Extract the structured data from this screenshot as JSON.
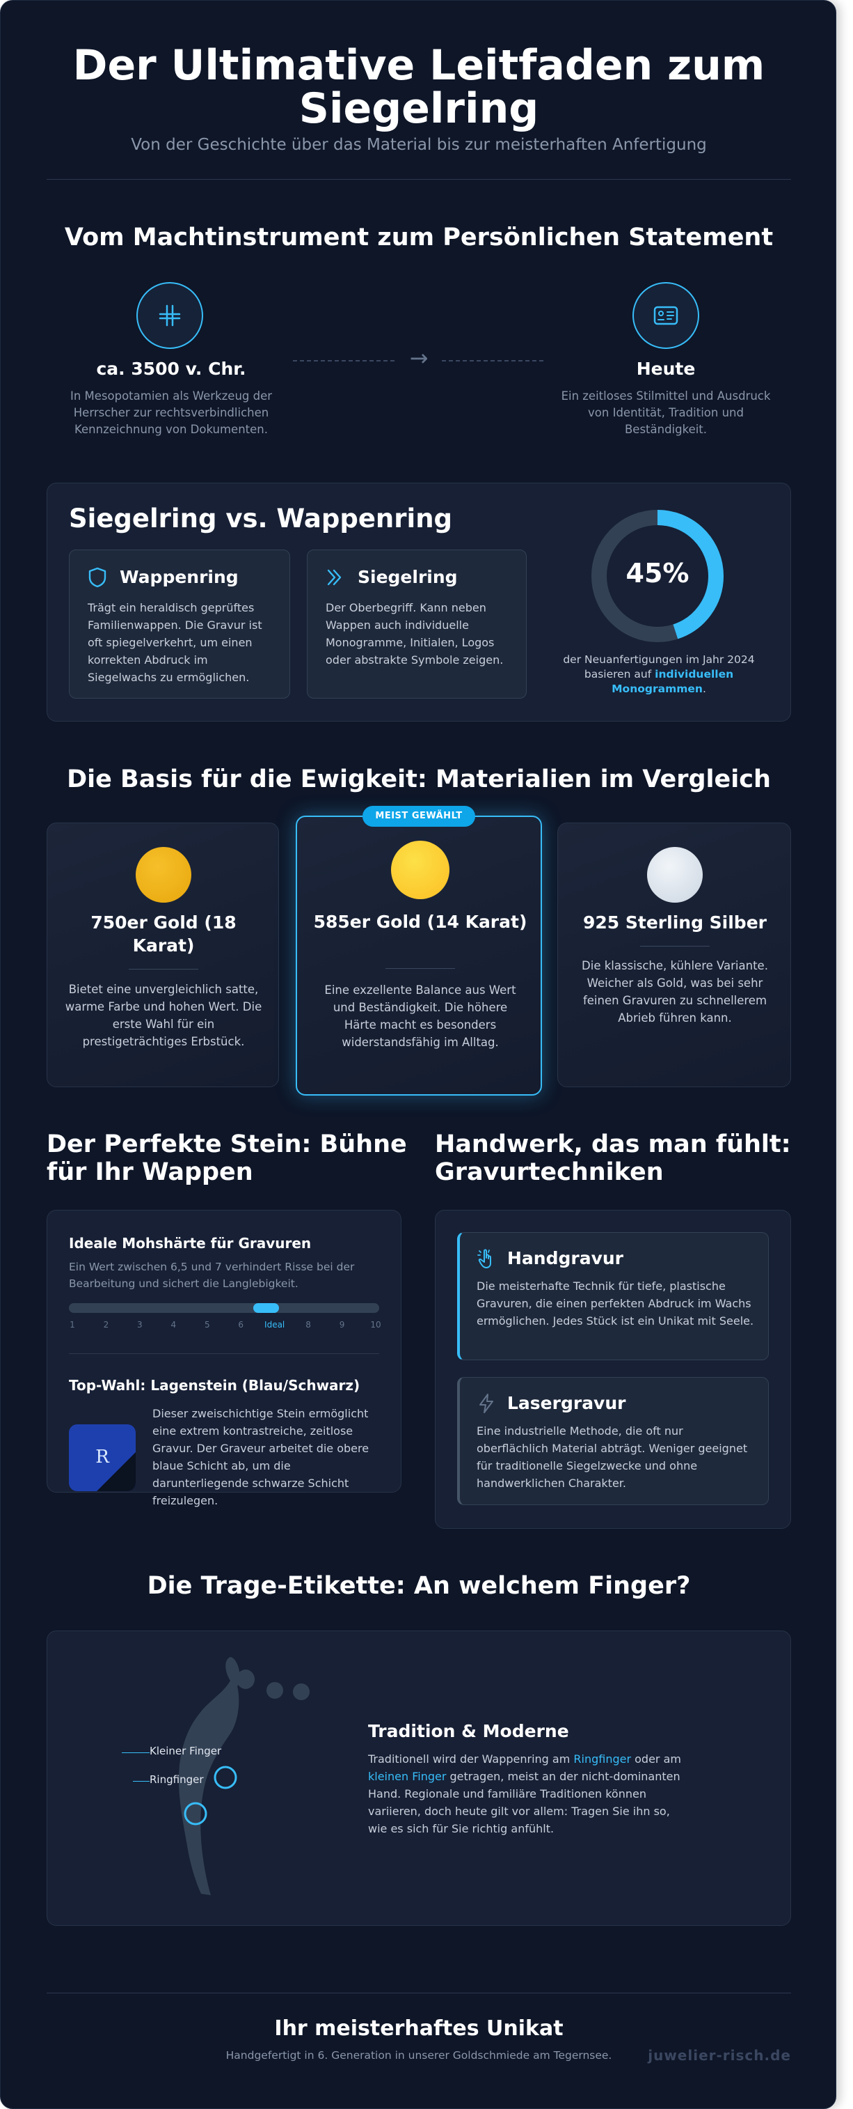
{
  "header": {
    "title_line1": "Der Ultimative Leitfaden zum",
    "title_line2": "Siegelring",
    "subtitle": "Von der Geschichte über das Material bis zur meisterhaften Anfertigung"
  },
  "history": {
    "title": "Vom Machtinstrument zum Persönlichen Statement",
    "past": {
      "heading": "ca. 3500 v. Chr.",
      "text": "In Mesopotamien als Werkzeug der Herrscher zur rechtsverbindlichen Kennzeichnung von Dokumenten."
    },
    "arrow": "→",
    "present": {
      "heading": "Heute",
      "text": "Ein zeitloses Stilmittel und Ausdruck von Identität, Tradition und Beständigkeit."
    }
  },
  "comparison": {
    "title": "Siegelring vs. Wappenring",
    "wappenring": {
      "label": "Wappenring",
      "text": "Trägt ein heraldisch geprüftes Familienwappen. Die Gravur ist oft spiegelverkehrt, um einen korrekten Abdruck im Siegelwachs zu ermöglichen."
    },
    "siegelring": {
      "label": "Siegelring",
      "text": "Der Oberbegriff. Kann neben Wappen auch individuelle Monogramme, Initialen, Logos oder abstrakte Symbole zeigen."
    },
    "stat": {
      "value": 45,
      "label": "45%",
      "caption_pre": "der Neuanfertigungen im Jahr 2024 basieren auf ",
      "caption_highlight": "individuellen Monogrammen",
      "caption_post": "."
    }
  },
  "materials": {
    "title": "Die Basis für die Ewigkeit: Materialien im Vergleich",
    "badge": "MEIST GEWÄHLT",
    "items": [
      {
        "name": "750er Gold (18 Karat)",
        "text": "Bietet eine unvergleichlich satte, warme Farbe und hohen Wert. Die erste Wahl für ein prestigeträchtiges Erbstück.",
        "color": "#eab308"
      },
      {
        "name": "585er Gold (14 Karat)",
        "text": "Eine exzellente Balance aus Wert und Beständigkeit. Die höhere Härte macht es besonders widerstandsfähig im Alltag.",
        "color": "#fcd34d"
      },
      {
        "name": "925 Sterling Silber",
        "text": "Die klassische, kühlere Variante. Weicher als Gold, was bei sehr feinen Gravuren zu schnellerem Abrieb führen kann.",
        "color": "#e2e8f0"
      }
    ]
  },
  "stone": {
    "title": "Der Perfekte Stein: Bühne für Ihr Wappen",
    "hardness_heading": "Ideale Mohshärte für Gravuren",
    "hardness_text": "Ein Wert zwischen 6,5 und 7 verhindert Risse bei der Bearbeitung und sichert die Langlebigkeit.",
    "scale": [
      "1",
      "2",
      "3",
      "4",
      "5",
      "6",
      "Ideal",
      "8",
      "9",
      "10"
    ],
    "ideal_range": [
      6.5,
      7
    ],
    "top_heading": "Top-Wahl: Lagenstein (Blau/Schwarz)",
    "stone_letter": "R",
    "top_text": "Dieser zweischichtige Stein ermöglicht eine extrem kontrastreiche, zeitlose Gravur. Der Graveur arbeitet die obere blaue Schicht ab, um die darunterliegende schwarze Schicht freizulegen."
  },
  "engraving": {
    "title": "Handwerk, das man fühlt: Gravurtechniken",
    "hand": {
      "label": "Handgravur",
      "text": "Die meisterhafte Technik für tiefe, plastische Gravuren, die einen perfekten Abdruck im Wachs ermöglichen. Jedes Stück ist ein Unikat mit Seele."
    },
    "laser": {
      "label": "Lasergravur",
      "text": "Eine industrielle Methode, die oft nur oberflächlich Material abträgt. Weniger geeignet für traditionelle Siegelzwecke und ohne handwerklichen Charakter."
    }
  },
  "etiquette": {
    "title": "Die Trage-Etikette: An welchem Finger?",
    "label_pinky": "Kleiner Finger",
    "label_ring": "Ringfinger",
    "heading": "Tradition & Moderne",
    "text_a": "Traditionell wird der Wappenring am ",
    "link_ring": "Ringfinger",
    "text_b": " oder am ",
    "link_pinky": "kleinen Finger",
    "text_c": " getragen, meist an der nicht-dominanten Hand. Regionale und familiäre Traditionen können variieren, doch heute gilt vor allem: Tragen Sie ihn so, wie es sich für Sie richtig anfühlt."
  },
  "footer": {
    "title": "Ihr meisterhaftes Unikat",
    "text": "Handgefertigt in 6. Generation in unserer Goldschmiede am Tegernsee.",
    "brand": "juwelier-risch.de"
  }
}
